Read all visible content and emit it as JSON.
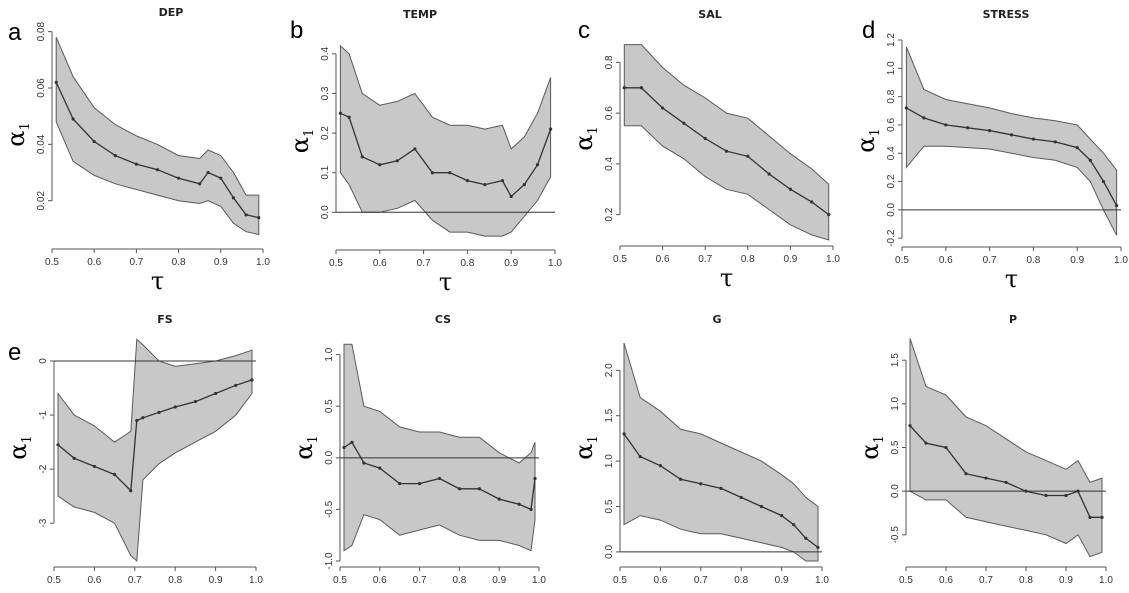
{
  "chart_data": [
    {
      "id": "a",
      "panel_letter": "a",
      "title": "DEP",
      "type": "area",
      "xlabel": "τ",
      "ylabel_symbol": "α",
      "ylabel_subscript": "1",
      "xlim": [
        0.5,
        1.0
      ],
      "ylim": [
        0.005,
        0.082
      ],
      "xticks": [
        0.5,
        0.6,
        0.7,
        0.8,
        0.9,
        1.0
      ],
      "xtick_labels": [
        "0.5",
        "0.6",
        "0.7",
        "0.8",
        "0.9",
        "1.0"
      ],
      "yticks": [
        0.02,
        0.04,
        0.06,
        0.08
      ],
      "ytick_labels": [
        "0.02",
        "0.04",
        "0.06",
        "0.08"
      ],
      "hline": null,
      "x": [
        0.51,
        0.55,
        0.6,
        0.65,
        0.7,
        0.75,
        0.8,
        0.85,
        0.87,
        0.9,
        0.93,
        0.96,
        0.99
      ],
      "estimate": [
        0.062,
        0.049,
        0.041,
        0.036,
        0.033,
        0.031,
        0.028,
        0.026,
        0.03,
        0.028,
        0.021,
        0.015,
        0.014
      ],
      "lower": [
        0.048,
        0.034,
        0.029,
        0.026,
        0.024,
        0.022,
        0.02,
        0.019,
        0.02,
        0.018,
        0.012,
        0.009,
        0.008
      ],
      "upper": [
        0.078,
        0.064,
        0.053,
        0.047,
        0.043,
        0.04,
        0.036,
        0.035,
        0.038,
        0.036,
        0.03,
        0.022,
        0.022
      ]
    },
    {
      "id": "b",
      "panel_letter": "b",
      "title": "TEMP",
      "type": "area",
      "xlabel": "τ",
      "ylabel_symbol": "α",
      "ylabel_subscript": "1",
      "xlim": [
        0.5,
        1.0
      ],
      "ylim": [
        -0.08,
        0.44
      ],
      "xticks": [
        0.5,
        0.6,
        0.7,
        0.8,
        0.9,
        1.0
      ],
      "xtick_labels": [
        "0.5",
        "0.6",
        "0.7",
        "0.8",
        "0.9",
        "1.0"
      ],
      "yticks": [
        0.0,
        0.1,
        0.2,
        0.3,
        0.4
      ],
      "ytick_labels": [
        "0.0",
        "0.1",
        "0.2",
        "0.3",
        "0.4"
      ],
      "hline": 0.0,
      "x": [
        0.51,
        0.53,
        0.56,
        0.6,
        0.64,
        0.68,
        0.72,
        0.76,
        0.8,
        0.84,
        0.88,
        0.9,
        0.93,
        0.96,
        0.99
      ],
      "estimate": [
        0.25,
        0.24,
        0.14,
        0.12,
        0.13,
        0.16,
        0.1,
        0.1,
        0.08,
        0.07,
        0.08,
        0.04,
        0.07,
        0.12,
        0.21
      ],
      "lower": [
        0.1,
        0.07,
        0.0,
        0.0,
        0.01,
        0.03,
        -0.02,
        -0.05,
        -0.05,
        -0.06,
        -0.06,
        -0.05,
        -0.01,
        0.03,
        0.09
      ],
      "upper": [
        0.42,
        0.4,
        0.3,
        0.27,
        0.28,
        0.3,
        0.24,
        0.22,
        0.22,
        0.21,
        0.22,
        0.16,
        0.19,
        0.25,
        0.34
      ]
    },
    {
      "id": "c",
      "panel_letter": "c",
      "title": "SAL",
      "type": "area",
      "xlabel": "τ",
      "ylabel_symbol": "α",
      "ylabel_subscript": "1",
      "xlim": [
        0.5,
        1.0
      ],
      "ylim": [
        0.1,
        0.9
      ],
      "xticks": [
        0.5,
        0.6,
        0.7,
        0.8,
        0.9,
        1.0
      ],
      "xtick_labels": [
        "0.5",
        "0.6",
        "0.7",
        "0.8",
        "0.9",
        "1.0"
      ],
      "yticks": [
        0.2,
        0.4,
        0.6,
        0.8
      ],
      "ytick_labels": [
        "0.2",
        "0.4",
        "0.6",
        "0.8"
      ],
      "hline": null,
      "x": [
        0.51,
        0.55,
        0.6,
        0.65,
        0.7,
        0.75,
        0.8,
        0.85,
        0.9,
        0.95,
        0.99
      ],
      "estimate": [
        0.7,
        0.7,
        0.62,
        0.56,
        0.5,
        0.45,
        0.43,
        0.36,
        0.3,
        0.25,
        0.2
      ],
      "lower": [
        0.55,
        0.55,
        0.47,
        0.42,
        0.35,
        0.3,
        0.28,
        0.22,
        0.16,
        0.12,
        0.1
      ],
      "upper": [
        0.87,
        0.87,
        0.78,
        0.71,
        0.66,
        0.6,
        0.58,
        0.51,
        0.44,
        0.38,
        0.32
      ]
    },
    {
      "id": "d",
      "panel_letter": "d",
      "title": "STRESS",
      "type": "area",
      "xlabel": "τ",
      "ylabel_symbol": "α",
      "ylabel_subscript": "1",
      "xlim": [
        0.5,
        1.0
      ],
      "ylim": [
        -0.22,
        1.2
      ],
      "xticks": [
        0.5,
        0.6,
        0.7,
        0.8,
        0.9,
        1.0
      ],
      "xtick_labels": [
        "0.5",
        "0.6",
        "0.7",
        "0.8",
        "0.9",
        "1.0"
      ],
      "yticks": [
        -0.2,
        0.0,
        0.2,
        0.4,
        0.6,
        0.8,
        1.0,
        1.2
      ],
      "ytick_labels": [
        "-0.2",
        "0.0",
        "0.2",
        "0.4",
        "0.6",
        "0.8",
        "1.0",
        "1.2"
      ],
      "hline": 0.0,
      "x": [
        0.51,
        0.55,
        0.6,
        0.65,
        0.7,
        0.75,
        0.8,
        0.85,
        0.9,
        0.93,
        0.96,
        0.99
      ],
      "estimate": [
        0.72,
        0.65,
        0.6,
        0.58,
        0.56,
        0.53,
        0.5,
        0.48,
        0.44,
        0.35,
        0.2,
        0.03
      ],
      "lower": [
        0.3,
        0.45,
        0.45,
        0.44,
        0.43,
        0.4,
        0.37,
        0.35,
        0.3,
        0.2,
        0.0,
        -0.18
      ],
      "upper": [
        1.15,
        0.85,
        0.78,
        0.75,
        0.72,
        0.68,
        0.65,
        0.63,
        0.6,
        0.5,
        0.4,
        0.28
      ]
    },
    {
      "id": "e",
      "panel_letter": "e",
      "title": "FS",
      "type": "area",
      "xlabel": "τ",
      "ylabel_symbol": "α",
      "ylabel_subscript": "1",
      "xlim": [
        0.5,
        1.0
      ],
      "ylim": [
        -3.7,
        0.5
      ],
      "xticks": [
        0.5,
        0.6,
        0.7,
        0.8,
        0.9,
        1.0
      ],
      "xtick_labels": [
        "0.5",
        "0.6",
        "0.7",
        "0.8",
        "0.9",
        "1.0"
      ],
      "yticks": [
        -3,
        -2,
        -1,
        0
      ],
      "ytick_labels": [
        "-3",
        "-2",
        "-1",
        "0"
      ],
      "hline": 0.0,
      "x": [
        0.51,
        0.55,
        0.6,
        0.65,
        0.69,
        0.705,
        0.72,
        0.76,
        0.8,
        0.85,
        0.9,
        0.95,
        0.99
      ],
      "estimate": [
        -1.55,
        -1.8,
        -1.95,
        -2.1,
        -2.4,
        -1.1,
        -1.05,
        -0.95,
        -0.85,
        -0.75,
        -0.6,
        -0.45,
        -0.35
      ],
      "lower": [
        -2.5,
        -2.7,
        -2.8,
        -3.0,
        -3.6,
        -3.7,
        -2.2,
        -1.9,
        -1.7,
        -1.5,
        -1.3,
        -1.0,
        -0.6
      ],
      "upper": [
        -0.6,
        -1.0,
        -1.2,
        -1.5,
        -1.3,
        0.4,
        0.3,
        0.0,
        -0.1,
        -0.05,
        0.0,
        0.1,
        0.2
      ]
    },
    {
      "id": "f",
      "panel_letter": "",
      "title": "CS",
      "type": "area",
      "xlabel": "τ",
      "ylabel_symbol": "α",
      "ylabel_subscript": "1",
      "xlim": [
        0.5,
        1.0
      ],
      "ylim": [
        -1.0,
        1.2
      ],
      "xticks": [
        0.5,
        0.6,
        0.7,
        0.8,
        0.9,
        1.0
      ],
      "xtick_labels": [
        "0.5",
        "0.6",
        "0.7",
        "0.8",
        "0.9",
        "1.0"
      ],
      "yticks": [
        -1.0,
        -0.5,
        0.0,
        0.5,
        1.0
      ],
      "ytick_labels": [
        "-1.0",
        "-0.5",
        "0.0",
        "0.5",
        "1.0"
      ],
      "hline": 0.0,
      "x": [
        0.51,
        0.53,
        0.56,
        0.6,
        0.65,
        0.7,
        0.75,
        0.8,
        0.85,
        0.9,
        0.95,
        0.98,
        0.99
      ],
      "estimate": [
        0.1,
        0.15,
        -0.05,
        -0.1,
        -0.25,
        -0.25,
        -0.2,
        -0.3,
        -0.3,
        -0.4,
        -0.45,
        -0.5,
        -0.2
      ],
      "lower": [
        -0.9,
        -0.85,
        -0.55,
        -0.6,
        -0.75,
        -0.7,
        -0.65,
        -0.75,
        -0.8,
        -0.8,
        -0.85,
        -0.9,
        -0.6
      ],
      "upper": [
        1.1,
        1.1,
        0.5,
        0.45,
        0.3,
        0.25,
        0.25,
        0.2,
        0.2,
        0.05,
        -0.05,
        0.05,
        0.15
      ]
    },
    {
      "id": "g",
      "panel_letter": "",
      "title": "G",
      "type": "area",
      "xlabel": "τ",
      "ylabel_symbol": "α",
      "ylabel_subscript": "1",
      "xlim": [
        0.5,
        1.0
      ],
      "ylim": [
        -0.1,
        2.4
      ],
      "xticks": [
        0.5,
        0.6,
        0.7,
        0.8,
        0.9,
        1.0
      ],
      "xtick_labels": [
        "0.5",
        "0.6",
        "0.7",
        "0.8",
        "0.9",
        "1.0"
      ],
      "yticks": [
        0.0,
        0.5,
        1.0,
        1.5,
        2.0
      ],
      "ytick_labels": [
        "0.0",
        "0.5",
        "1.0",
        "1.5",
        "2.0"
      ],
      "hline": 0.0,
      "x": [
        0.51,
        0.55,
        0.6,
        0.65,
        0.7,
        0.75,
        0.8,
        0.85,
        0.9,
        0.93,
        0.96,
        0.99
      ],
      "estimate": [
        1.3,
        1.05,
        0.95,
        0.8,
        0.75,
        0.7,
        0.6,
        0.5,
        0.4,
        0.3,
        0.15,
        0.05
      ],
      "lower": [
        0.3,
        0.4,
        0.35,
        0.25,
        0.2,
        0.2,
        0.15,
        0.1,
        0.05,
        0.0,
        -0.1,
        -0.1
      ],
      "upper": [
        2.3,
        1.7,
        1.55,
        1.35,
        1.3,
        1.2,
        1.1,
        1.0,
        0.85,
        0.75,
        0.6,
        0.5
      ]
    },
    {
      "id": "h",
      "panel_letter": "",
      "title": "P",
      "type": "area",
      "xlabel": "τ",
      "ylabel_symbol": "α",
      "ylabel_subscript": "1",
      "xlim": [
        0.5,
        1.0
      ],
      "ylim": [
        -0.8,
        1.8
      ],
      "xticks": [
        0.5,
        0.6,
        0.7,
        0.8,
        0.9,
        1.0
      ],
      "xtick_labels": [
        "0.5",
        "0.6",
        "0.7",
        "0.8",
        "0.9",
        "1.0"
      ],
      "yticks": [
        -0.5,
        0.0,
        0.5,
        1.0,
        1.5
      ],
      "ytick_labels": [
        "-0.5",
        "0.0",
        "0.5",
        "1.0",
        "1.5"
      ],
      "hline": 0.0,
      "x": [
        0.51,
        0.55,
        0.6,
        0.65,
        0.7,
        0.75,
        0.8,
        0.85,
        0.9,
        0.93,
        0.96,
        0.99
      ],
      "estimate": [
        0.75,
        0.55,
        0.5,
        0.2,
        0.15,
        0.1,
        0.0,
        -0.05,
        -0.05,
        0.0,
        -0.3,
        -0.3
      ],
      "lower": [
        0.0,
        -0.1,
        -0.1,
        -0.3,
        -0.35,
        -0.4,
        -0.45,
        -0.5,
        -0.6,
        -0.5,
        -0.75,
        -0.7
      ],
      "upper": [
        1.75,
        1.2,
        1.1,
        0.85,
        0.75,
        0.6,
        0.45,
        0.35,
        0.25,
        0.35,
        0.1,
        0.15
      ]
    }
  ],
  "colors": {
    "band_fill": "#c8c8c8",
    "band_edge": "#5a5a5a",
    "estimate_line": "#333333",
    "axis": "#555555",
    "zero_line": "#333333"
  }
}
